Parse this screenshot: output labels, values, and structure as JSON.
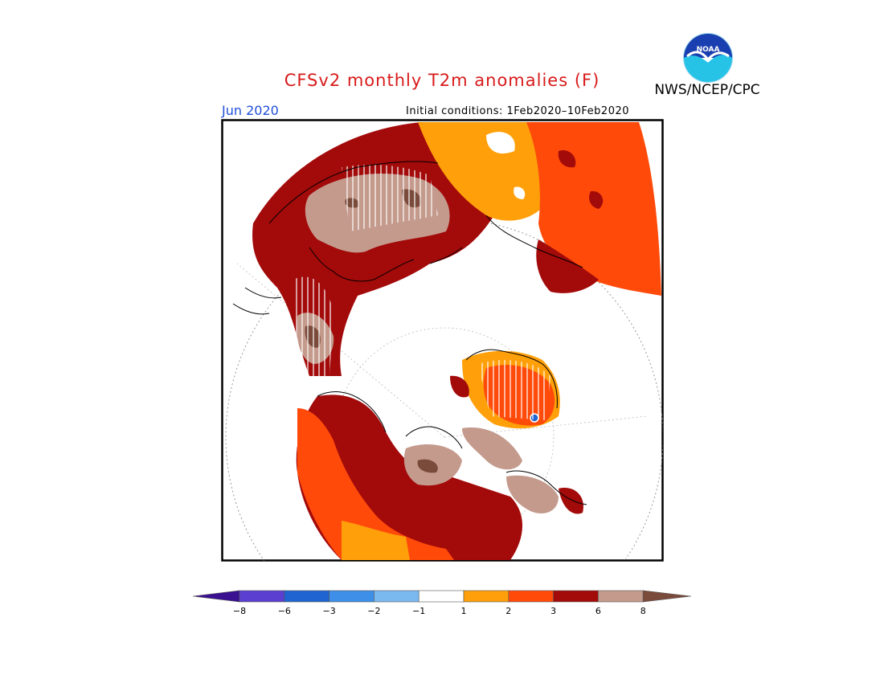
{
  "header": {
    "title": "CFSv2 monthly T2m anomalies (F)",
    "agency": "NWS/NCEP/CPC",
    "logo_text": "NOAA",
    "valid_month": "Jun 2020",
    "initial_conditions": "Initial conditions: 1Feb2020–10Feb2020"
  },
  "colorbar": {
    "tick_labels": [
      "−8",
      "−6",
      "−3",
      "−2",
      "−1",
      "1",
      "2",
      "3",
      "6",
      "8"
    ],
    "bins": [
      {
        "range": "< -8",
        "color": "#3a1190"
      },
      {
        "range": "-8 to -6",
        "color": "#5a3fd0"
      },
      {
        "range": "-6 to -3",
        "color": "#1f64d0"
      },
      {
        "range": "-3 to -2",
        "color": "#3d8fe8"
      },
      {
        "range": "-2 to -1",
        "color": "#7ab8f0"
      },
      {
        "range": "-1 to 1",
        "color": "#ffffff"
      },
      {
        "range": "1 to 2",
        "color": "#ffa00a"
      },
      {
        "range": "2 to 3",
        "color": "#ff4a0a"
      },
      {
        "range": "3 to 6",
        "color": "#a30a0a"
      },
      {
        "range": "6 to 8",
        "color": "#c49a8c"
      },
      {
        "range": "> 8",
        "color": "#7a4a3a"
      }
    ]
  },
  "colors": {
    "title": "#d81a1a",
    "month": "#1f4fd8",
    "warm_1_2": "#ffa00a",
    "warm_2_3": "#ff4a0a",
    "warm_3_6": "#a30a0a",
    "warm_6_8": "#c49a8c",
    "warm_gt8": "#7a4a3a"
  }
}
